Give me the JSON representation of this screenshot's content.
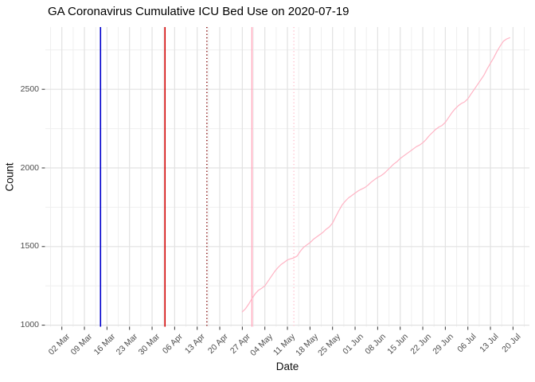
{
  "chart_data": {
    "type": "line",
    "title": "GA Coronavirus Cumulative ICU Bed Use on 2020-07-19",
    "xlabel": "Date",
    "ylabel": "Count",
    "grid": "major and minor light-gray gridlines on white background, no panel border",
    "legend_position": "none",
    "x_tick_labels": [
      "02 Mar",
      "09 Mar",
      "16 Mar",
      "23 Mar",
      "30 Mar",
      "06 Apr",
      "13 Apr",
      "20 Apr",
      "27 Apr",
      "04 May",
      "11 May",
      "18 May",
      "25 May",
      "01 Jun",
      "08 Jun",
      "15 Jun",
      "22 Jun",
      "29 Jun",
      "06 Jul",
      "13 Jul",
      "20 Jul"
    ],
    "x_tick_dates": [
      "2020-03-02",
      "2020-03-09",
      "2020-03-16",
      "2020-03-23",
      "2020-03-30",
      "2020-04-06",
      "2020-04-13",
      "2020-04-20",
      "2020-04-27",
      "2020-05-04",
      "2020-05-11",
      "2020-05-18",
      "2020-05-25",
      "2020-06-01",
      "2020-06-08",
      "2020-06-15",
      "2020-06-22",
      "2020-06-29",
      "2020-07-06",
      "2020-07-13",
      "2020-07-20"
    ],
    "y_ticks": [
      1000,
      1500,
      2000,
      2500
    ],
    "y_tick_labels": [
      "1000",
      "1500",
      "2000",
      "2500"
    ],
    "y_minor_ticks": [
      1250,
      1750,
      2250,
      2750
    ],
    "xlim": [
      "2020-02-26",
      "2020-07-25"
    ],
    "ylim": [
      988,
      2895
    ],
    "vlines": [
      {
        "date": "2020-03-14",
        "color": "#0000cd",
        "style": "solid"
      },
      {
        "date": "2020-04-03",
        "color": "#d10000",
        "style": "solid"
      },
      {
        "date": "2020-04-16",
        "color": "#8b1a1a",
        "style": "dotted"
      },
      {
        "date": "2020-04-30",
        "color": "#ffaabe",
        "style": "solid"
      },
      {
        "date": "2020-05-13",
        "color": "#ffc9d4",
        "style": "dotted"
      }
    ],
    "series": [
      {
        "name": "cumulative-icu-bed-use",
        "color": "#ffb3c4",
        "start_date": "2020-04-27",
        "frequency": "daily",
        "values": [
          1085,
          1105,
          1135,
          1170,
          1200,
          1222,
          1235,
          1250,
          1280,
          1310,
          1340,
          1365,
          1385,
          1400,
          1415,
          1422,
          1428,
          1440,
          1470,
          1495,
          1510,
          1525,
          1545,
          1560,
          1575,
          1590,
          1610,
          1625,
          1650,
          1690,
          1730,
          1765,
          1790,
          1810,
          1825,
          1840,
          1855,
          1865,
          1875,
          1890,
          1910,
          1925,
          1940,
          1950,
          1965,
          1985,
          2005,
          2025,
          2040,
          2060,
          2075,
          2090,
          2105,
          2120,
          2135,
          2145,
          2160,
          2180,
          2205,
          2225,
          2245,
          2260,
          2270,
          2290,
          2320,
          2350,
          2375,
          2395,
          2410,
          2420,
          2440,
          2470,
          2500,
          2530,
          2560,
          2590,
          2630,
          2665,
          2700,
          2740,
          2775,
          2805,
          2820,
          2828
        ]
      }
    ]
  }
}
